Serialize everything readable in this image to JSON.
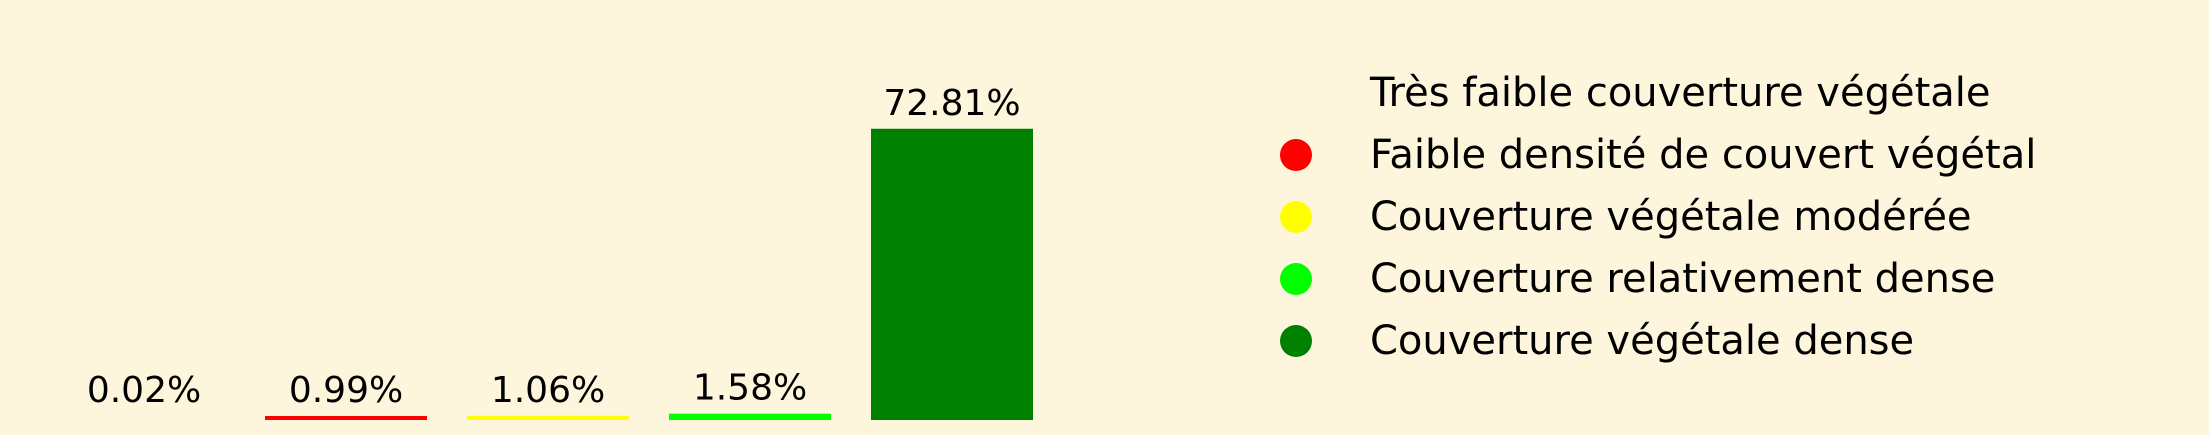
{
  "chart_data": {
    "type": "bar",
    "categories": [
      "Très faible couverture végétale",
      "Faible densité de couvert végétal",
      "Couverture végétale modérée",
      "Couverture relativement dense",
      "Couverture végétale dense"
    ],
    "values": [
      0.02,
      0.99,
      1.06,
      1.58,
      72.81
    ],
    "data_labels": [
      "0.02%",
      "0.99%",
      "1.06%",
      "1.58%",
      "72.81%"
    ],
    "colors": [
      "#fdf6dc",
      "#ff0000",
      "#ffff00",
      "#00ff00",
      "#008000"
    ],
    "ylim": [
      0,
      80
    ],
    "legend_position": "right"
  }
}
